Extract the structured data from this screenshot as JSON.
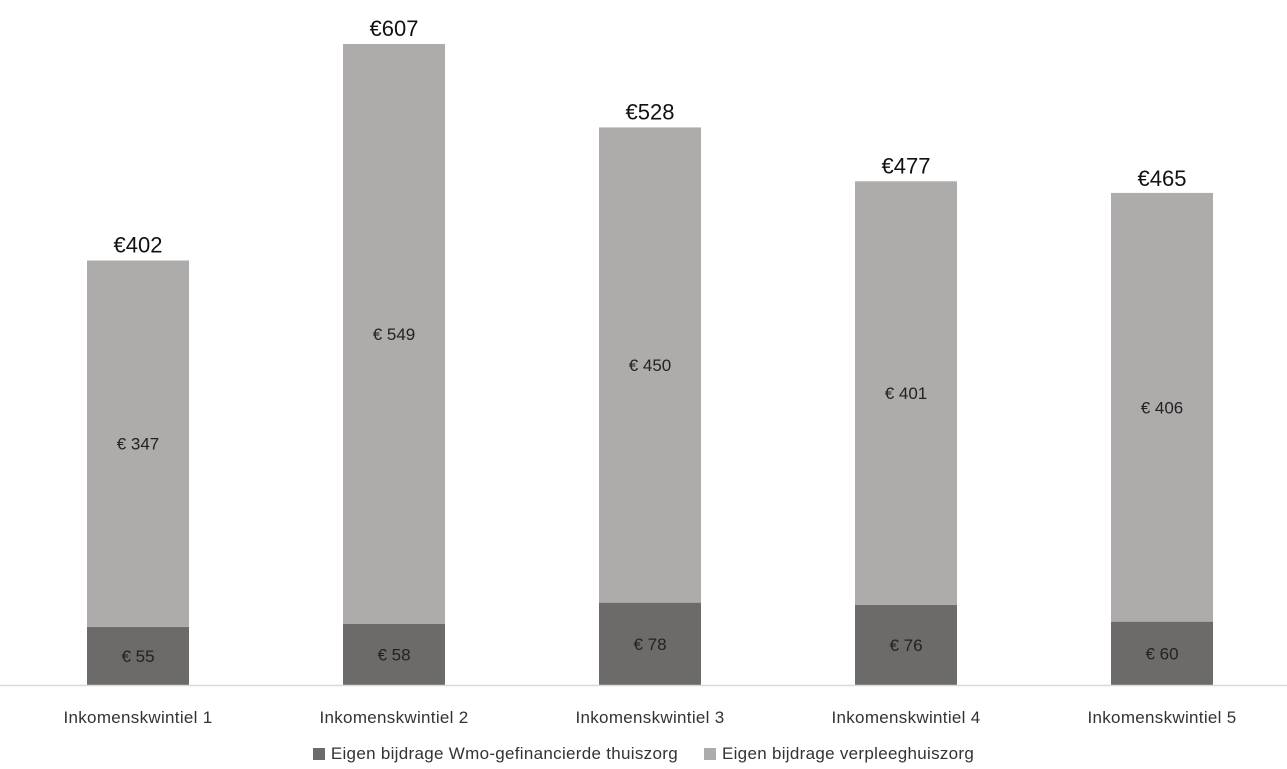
{
  "chart_data": {
    "type": "bar",
    "stacked": true,
    "categories": [
      "Inkomenskwintiel 1",
      "Inkomenskwintiel 2",
      "Inkomenskwintiel 3",
      "Inkomenskwintiel 4",
      "Inkomenskwintiel 5"
    ],
    "series": [
      {
        "name": "Eigen bijdrage Wmo-gefinancierde thuiszorg",
        "values": [
          55,
          58,
          78,
          76,
          60
        ],
        "labels": [
          "€ 55",
          "€ 58",
          "€ 78",
          "€ 76",
          "€ 60"
        ],
        "color": "#6d6a6a"
      },
      {
        "name": "Eigen bijdrage verpleeghuiszorg",
        "values": [
          347,
          549,
          450,
          401,
          406
        ],
        "labels": [
          "€ 347",
          "€ 549",
          "€ 450",
          "€ 401",
          "€ 406"
        ],
        "color": "#aeabab"
      }
    ],
    "totals": [
      402,
      607,
      528,
      477,
      465
    ],
    "total_labels": [
      "€402",
      "€607",
      "€528",
      "€477",
      "€465"
    ],
    "ylim": [
      0,
      607
    ],
    "grid": false,
    "legend_position": "bottom",
    "axis_color": "#d9d9d9"
  }
}
